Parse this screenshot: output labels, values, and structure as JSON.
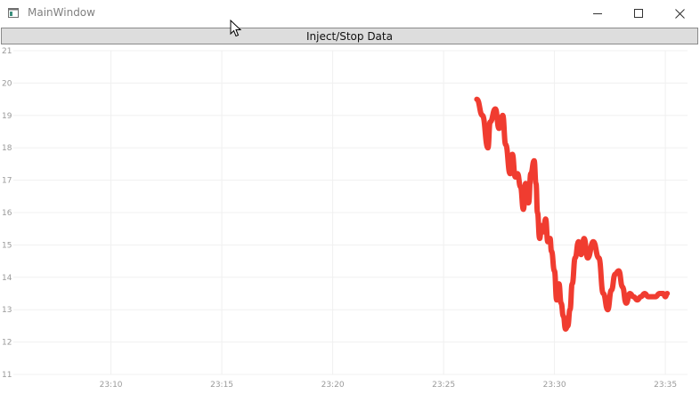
{
  "window": {
    "title": "MainWindow",
    "minimize_icon": "minimize-icon",
    "maximize_icon": "maximize-icon",
    "close_icon": "close-icon"
  },
  "toolbar": {
    "inject_label": "Inject/Stop Data"
  },
  "chart_data": {
    "type": "line",
    "title": "",
    "xlabel": "",
    "ylabel": "",
    "ylim": [
      11,
      21
    ],
    "y_ticks": [
      "11",
      "12",
      "13",
      "14",
      "15",
      "16",
      "17",
      "18",
      "19",
      "20",
      "21"
    ],
    "x_ticks": [
      "23:10",
      "23:15",
      "23:20",
      "23:25",
      "23:30",
      "23:35"
    ],
    "xlim_minutes": [
      5.6,
      36.0
    ],
    "grid": true,
    "line_color": "#f03c30",
    "series": [
      {
        "x": [
          "23:26:30",
          "23:26:45",
          "23:27:00",
          "23:27:06",
          "23:27:20",
          "23:27:30",
          "23:27:40",
          "23:27:48",
          "23:28:00",
          "23:28:06",
          "23:28:14",
          "23:28:20",
          "23:28:28",
          "23:28:36",
          "23:28:42",
          "23:28:50",
          "23:28:56",
          "23:29:05",
          "23:29:10",
          "23:29:14",
          "23:29:20",
          "23:29:25",
          "23:29:30",
          "23:29:36",
          "23:29:42",
          "23:29:48",
          "23:29:52",
          "23:30:00",
          "23:30:06",
          "23:30:12",
          "23:30:18",
          "23:30:24",
          "23:30:30",
          "23:30:36",
          "23:30:42",
          "23:30:48",
          "23:30:56",
          "23:31:05",
          "23:31:12",
          "23:31:20",
          "23:31:30",
          "23:31:45",
          "23:32:00",
          "23:32:12",
          "23:32:24",
          "23:32:34",
          "23:32:44",
          "23:32:54",
          "23:33:04",
          "23:33:14",
          "23:33:24",
          "23:33:34",
          "23:33:44",
          "23:33:54",
          "23:34:04",
          "23:34:14",
          "23:34:24",
          "23:34:34",
          "23:34:44",
          "23:34:54",
          "23:35:00",
          "23:35:05"
        ],
        "y": [
          19.5,
          19.0,
          18.0,
          18.8,
          19.2,
          18.6,
          19.0,
          18.1,
          17.2,
          17.8,
          17.1,
          17.2,
          16.8,
          16.1,
          16.9,
          16.3,
          17.2,
          17.6,
          16.9,
          16.0,
          15.2,
          15.6,
          15.4,
          15.8,
          15.1,
          15.2,
          14.8,
          14.2,
          13.3,
          13.8,
          13.2,
          12.8,
          12.4,
          12.5,
          13.0,
          13.8,
          14.6,
          15.1,
          14.7,
          15.2,
          14.6,
          15.1,
          14.6,
          13.5,
          13.0,
          13.6,
          14.1,
          14.2,
          13.7,
          13.2,
          13.5,
          13.4,
          13.3,
          13.4,
          13.5,
          13.4,
          13.4,
          13.4,
          13.5,
          13.5,
          13.4,
          13.5
        ]
      }
    ]
  }
}
